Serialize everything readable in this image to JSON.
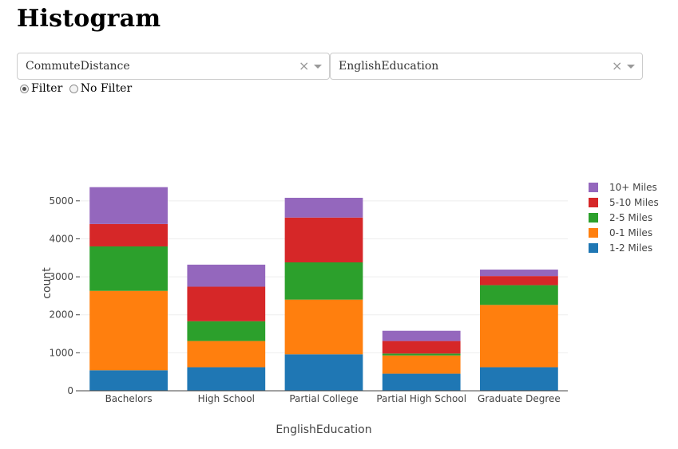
{
  "page": {
    "title": "Histogram"
  },
  "controls": {
    "dropdown_x": {
      "value": "CommuteDistance",
      "clear_symbol": "×"
    },
    "dropdown_y": {
      "value": "EnglishEducation",
      "clear_symbol": "×"
    },
    "radio": [
      {
        "label": "Filter",
        "checked": true
      },
      {
        "label": "No Filter",
        "checked": false
      }
    ]
  },
  "chart_data": {
    "type": "bar",
    "barmode": "stack",
    "categories": [
      "Bachelors",
      "High School",
      "Partial College",
      "Partial High School",
      "Graduate Degree"
    ],
    "xlabel": "EnglishEducation",
    "ylabel": "count",
    "ylim": [
      0,
      5500
    ],
    "yticks": [
      0,
      1000,
      2000,
      3000,
      4000,
      5000
    ],
    "ytick_labels": [
      "0",
      "1000",
      "2000",
      "3000",
      "4000",
      "5000"
    ],
    "grid": true,
    "legend_position": "right",
    "series": [
      {
        "name": "1-2 Miles",
        "color": "#1f77b4",
        "values": [
          540,
          620,
          960,
          450,
          620
        ]
      },
      {
        "name": "0-1 Miles",
        "color": "#ff7f0e",
        "values": [
          2090,
          690,
          1440,
          480,
          1640
        ]
      },
      {
        "name": "2-5 Miles",
        "color": "#2ca02c",
        "values": [
          1170,
          520,
          980,
          50,
          520
        ]
      },
      {
        "name": "5-10 Miles",
        "color": "#d62728",
        "values": [
          590,
          910,
          1180,
          330,
          240
        ]
      },
      {
        "name": "10+ Miles",
        "color": "#9467bd",
        "values": [
          970,
          580,
          520,
          270,
          170
        ]
      }
    ],
    "legend_order": [
      "10+ Miles",
      "5-10 Miles",
      "2-5 Miles",
      "0-1 Miles",
      "1-2 Miles"
    ]
  }
}
